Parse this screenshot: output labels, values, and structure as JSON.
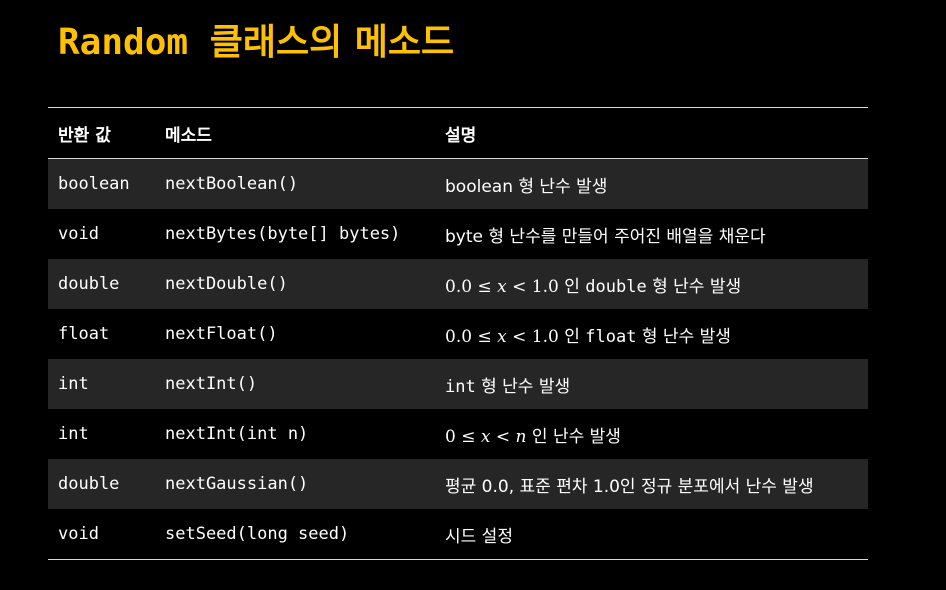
{
  "slide": {
    "title_code": "Random",
    "title_korean": "클래스의 메소드"
  },
  "table": {
    "headers": [
      "반환 값",
      "메소드",
      "설명"
    ],
    "rows": [
      {
        "return_type": "boolean",
        "method": "nextBoolean()",
        "description": "boolean 형 난수 발생"
      },
      {
        "return_type": "void",
        "method": "nextBytes(byte[] bytes)",
        "description": "byte 형 난수를 만들어 주어진 배열을 채운다"
      },
      {
        "return_type": "double",
        "method": "nextDouble()",
        "desc_math": "0.0 ≤ x < 1.0",
        "desc_pre": " 인 ",
        "desc_code": "double",
        "desc_post": " 형 난수 발생"
      },
      {
        "return_type": "float",
        "method": "nextFloat()",
        "desc_math": "0.0 ≤ x < 1.0",
        "desc_pre": " 인 ",
        "desc_code": "float",
        "desc_post": " 형 난수 발생"
      },
      {
        "return_type": "int",
        "method": "nextInt()",
        "desc_code": "int",
        "desc_post": " 형 난수 발생"
      },
      {
        "return_type": "int",
        "method": "nextInt(int n)",
        "desc_math": "0 ≤ x < n",
        "desc_post": " 인 난수 발생"
      },
      {
        "return_type": "double",
        "method": "nextGaussian()",
        "description": "평균 0.0, 표준 편차 1.0인 정규 분포에서 난수 발생"
      },
      {
        "return_type": "void",
        "method": "setSeed(long seed)",
        "description": "시드 설정"
      }
    ]
  },
  "colors": {
    "background": "#000000",
    "title": "#ffc000",
    "text": "#ffffff",
    "row_shade": "#262626",
    "rule": "#d9d9d9"
  }
}
